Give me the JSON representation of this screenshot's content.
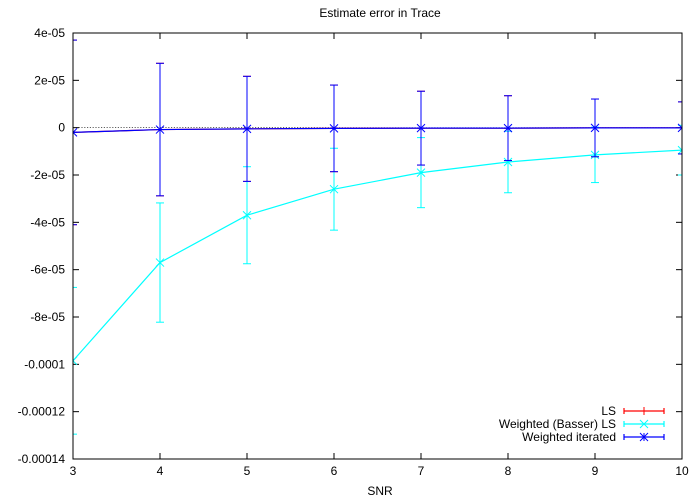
{
  "chart_data": {
    "type": "line",
    "title": "Estimate error in Trace",
    "xlabel": "SNR",
    "ylabel": "",
    "xlim": [
      3,
      10
    ],
    "ylim": [
      -0.00014,
      4e-05
    ],
    "x": [
      3,
      4,
      5,
      6,
      7,
      8,
      9,
      10
    ],
    "x_ticks": [
      3,
      4,
      5,
      6,
      7,
      8,
      9,
      10
    ],
    "x_tick_labels": [
      "3",
      "4",
      "5",
      "6",
      "7",
      "8",
      "9",
      "10"
    ],
    "y_ticks": [
      4e-05,
      2e-05,
      0,
      -2e-05,
      -4e-05,
      -6e-05,
      -8e-05,
      -0.0001,
      -0.00012,
      -0.00014
    ],
    "y_tick_labels": [
      "4e-05",
      "2e-05",
      "0",
      "-2e-05",
      "-4e-05",
      "-6e-05",
      "-8e-05",
      "-0.0001",
      "-0.00012",
      "-0.00014"
    ],
    "zero_line": true,
    "grid": false,
    "legend_position": "bottom-right",
    "series": [
      {
        "name": "LS",
        "color": "#ff0000",
        "marker": "plus",
        "values": [
          -2e-06,
          -8e-07,
          -5e-07,
          -3e-07,
          -2e-07,
          -2e-07,
          -1e-07,
          -1e-07
        ],
        "errors": [
          3.9e-05,
          2.8e-05,
          2.22e-05,
          1.83e-05,
          1.56e-05,
          1.37e-05,
          1.22e-05,
          1.1e-05
        ]
      },
      {
        "name": "Weighted (Basser) LS",
        "color": "#00ffff",
        "marker": "cross",
        "values": [
          -9.85e-05,
          -5.7e-05,
          -3.7e-05,
          -2.6e-05,
          -1.9e-05,
          -1.45e-05,
          -1.15e-05,
          -9.5e-06
        ],
        "errors": [
          3.1e-05,
          2.52e-05,
          2.05e-05,
          1.73e-05,
          1.48e-05,
          1.3e-05,
          1.17e-05,
          1.05e-05
        ]
      },
      {
        "name": "Weighted iterated",
        "color": "#0000ff",
        "marker": "star",
        "values": [
          -2e-06,
          -8e-07,
          -5e-07,
          -3e-07,
          -2e-07,
          -2e-07,
          -1e-07,
          -1e-07
        ],
        "errors": [
          3.9e-05,
          2.8e-05,
          2.22e-05,
          1.83e-05,
          1.56e-05,
          1.37e-05,
          1.22e-05,
          1.1e-05
        ]
      }
    ]
  }
}
